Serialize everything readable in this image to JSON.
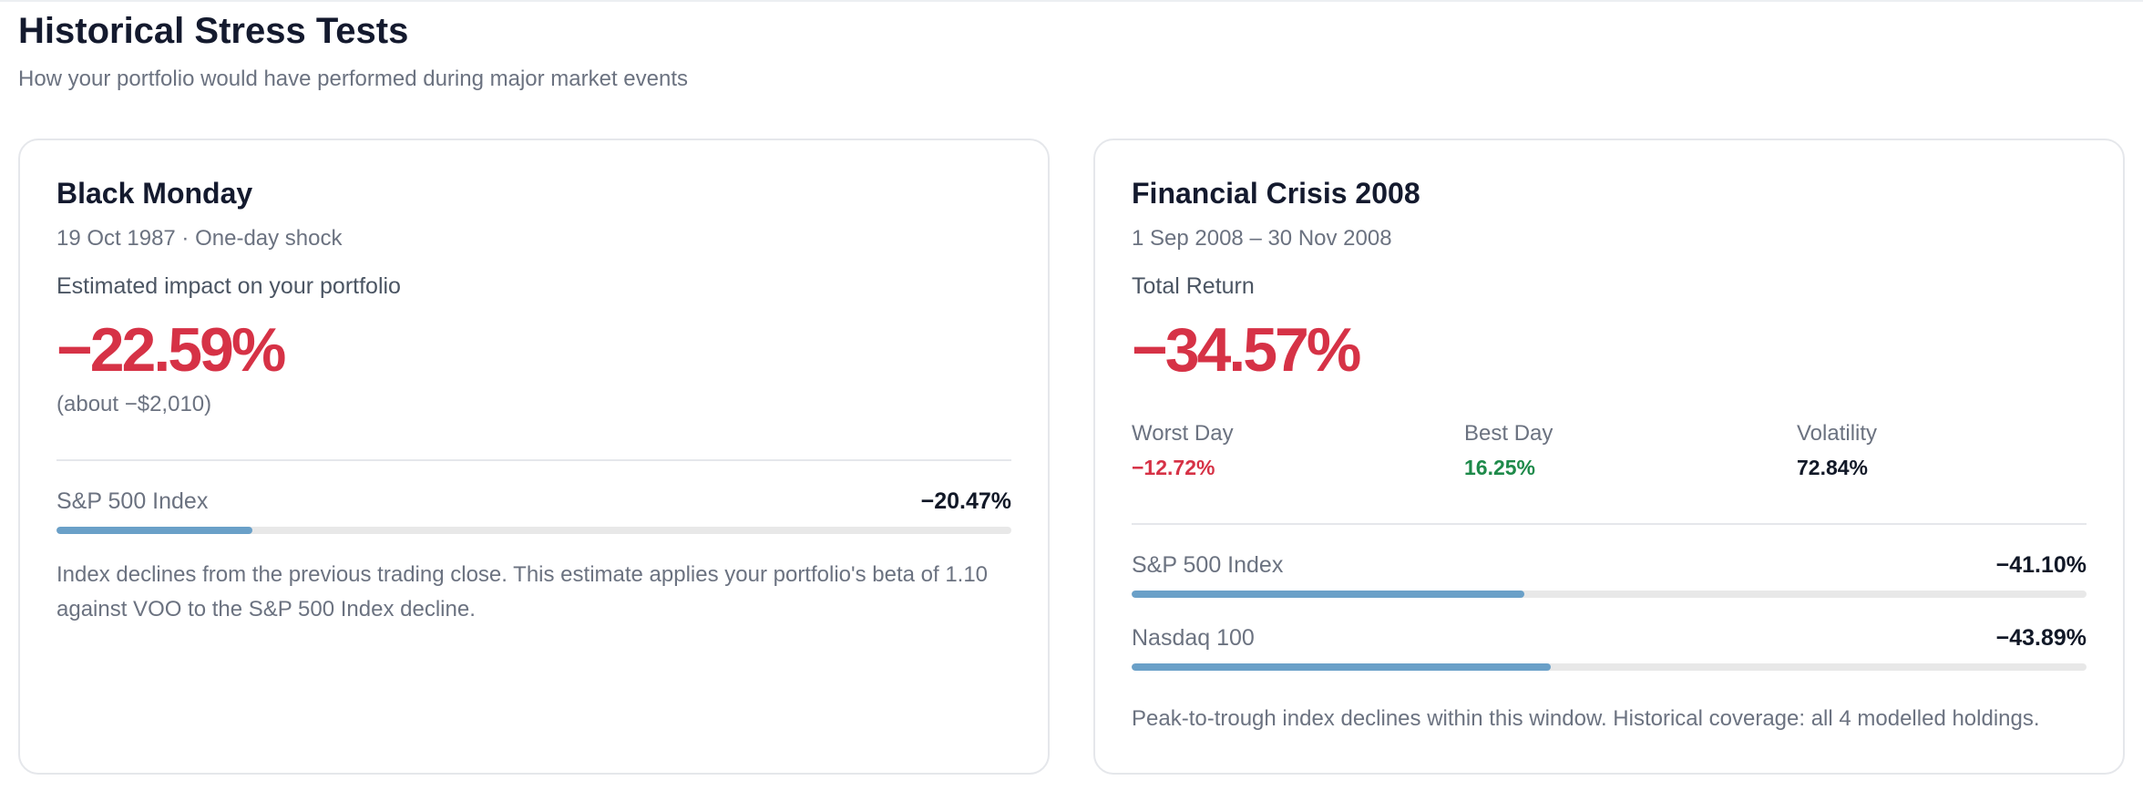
{
  "colors": {
    "negative": "#d63246",
    "positive": "#1e8a4a",
    "neutral": "#111827",
    "bar": "#6aa0c8"
  },
  "header": {
    "title": "Historical Stress Tests",
    "subtitle": "How your portfolio would have performed during major market events"
  },
  "cards": [
    {
      "title": "Black Monday",
      "date": "19 Oct 1987 · One-day shock",
      "label": "Estimated impact on your portfolio",
      "value": "−22.59%",
      "approx": "(about −$2,010)",
      "indices": [
        {
          "name": "S&P 500 Index",
          "value": "−20.47%",
          "fill_pct": 20.47
        }
      ],
      "note": "Index declines from the previous trading close. This estimate applies your portfolio's beta of 1.10 against VOO to the S&P 500 Index decline."
    },
    {
      "title": "Financial Crisis 2008",
      "date": "1 Sep 2008 – 30 Nov 2008",
      "label": "Total Return",
      "value": "−34.57%",
      "stats": [
        {
          "label": "Worst Day",
          "value": "−12.72%",
          "tone": "negative"
        },
        {
          "label": "Best Day",
          "value": "16.25%",
          "tone": "positive"
        },
        {
          "label": "Volatility",
          "value": "72.84%",
          "tone": "neutral"
        }
      ],
      "indices": [
        {
          "name": "S&P 500 Index",
          "value": "−41.10%",
          "fill_pct": 41.1
        },
        {
          "name": "Nasdaq 100",
          "value": "−43.89%",
          "fill_pct": 43.89
        }
      ],
      "note": "Peak-to-trough index declines within this window. Historical coverage: all 4 modelled holdings."
    }
  ]
}
